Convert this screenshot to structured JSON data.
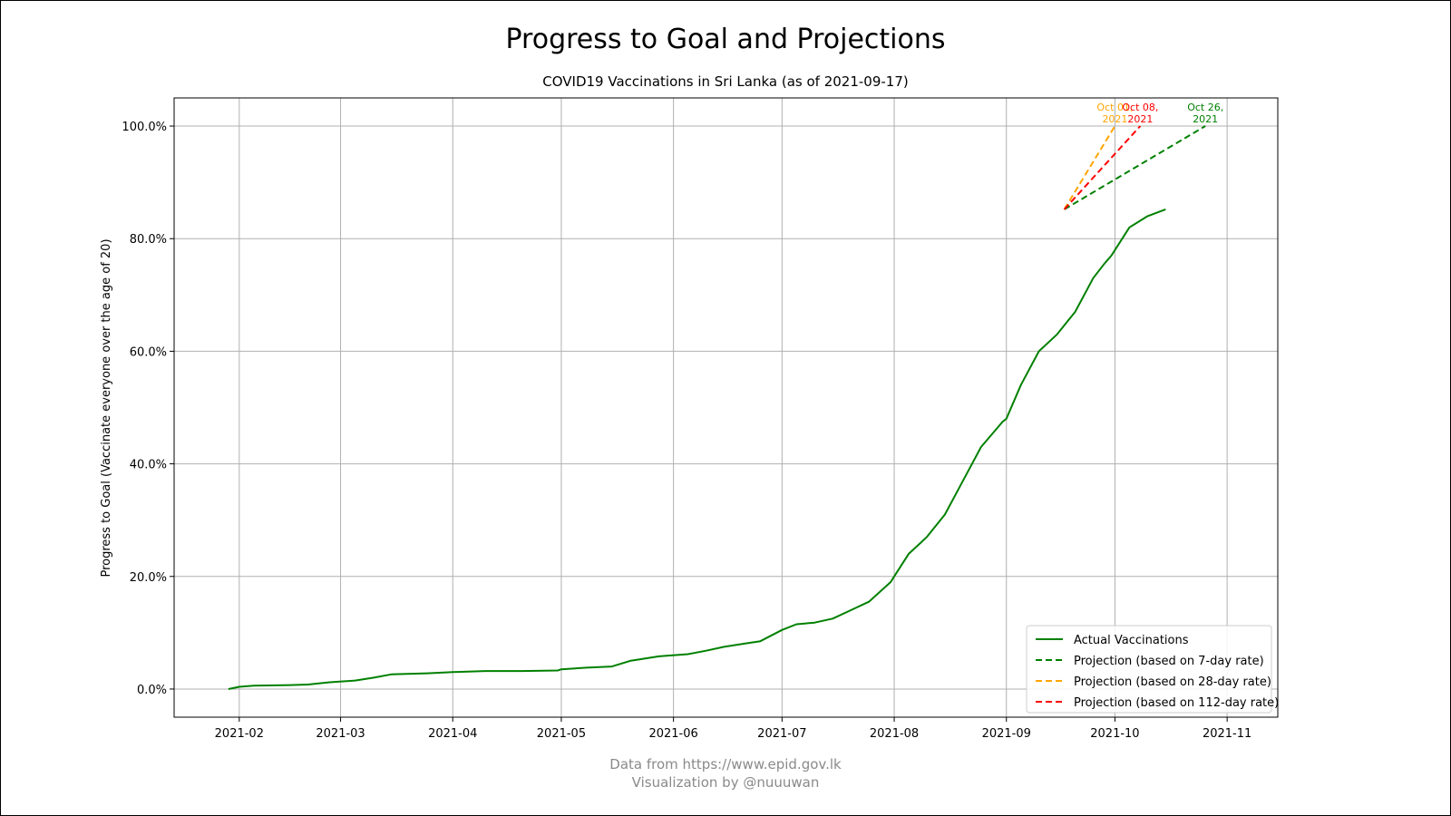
{
  "chart_data": {
    "type": "line",
    "title": "Progress to Goal and Projections",
    "subtitle": "COVID19 Vaccinations in Sri Lanka (as of 2021-09-17)",
    "xlabel": "",
    "ylabel": "Progress to Goal (Vaccinate everyone over the age of 20)",
    "xlim": [
      "2021-01-14",
      "2021-11-15"
    ],
    "ylim": [
      -5,
      105
    ],
    "x_ticks": [
      "2021-02",
      "2021-03",
      "2021-04",
      "2021-05",
      "2021-06",
      "2021-07",
      "2021-08",
      "2021-09",
      "2021-10",
      "2021-11"
    ],
    "x_tick_dates": [
      "2021-02-01",
      "2021-03-01",
      "2021-04-01",
      "2021-05-01",
      "2021-06-01",
      "2021-07-01",
      "2021-08-01",
      "2021-09-01",
      "2021-10-01",
      "2021-11-01"
    ],
    "y_ticks": [
      0,
      20,
      40,
      60,
      80,
      100
    ],
    "y_tick_labels": [
      "0.0%",
      "20.0%",
      "40.0%",
      "60.0%",
      "80.0%",
      "100.0%"
    ],
    "grid": true,
    "legend_position": "bottom-right",
    "series": [
      {
        "name": "Actual Vaccinations",
        "color": "#008000",
        "dash": "solid",
        "points": [
          [
            "2021-01-29",
            0.0
          ],
          [
            "2021-02-01",
            0.4
          ],
          [
            "2021-02-05",
            0.6
          ],
          [
            "2021-02-15",
            0.7
          ],
          [
            "2021-02-20",
            0.8
          ],
          [
            "2021-02-26",
            1.2
          ],
          [
            "2021-03-05",
            1.5
          ],
          [
            "2021-03-10",
            2.0
          ],
          [
            "2021-03-15",
            2.6
          ],
          [
            "2021-03-25",
            2.8
          ],
          [
            "2021-04-01",
            3.0
          ],
          [
            "2021-04-10",
            3.2
          ],
          [
            "2021-04-20",
            3.2
          ],
          [
            "2021-04-30",
            3.3
          ],
          [
            "2021-05-01",
            3.5
          ],
          [
            "2021-05-08",
            3.8
          ],
          [
            "2021-05-15",
            4.0
          ],
          [
            "2021-05-20",
            5.0
          ],
          [
            "2021-05-28",
            5.8
          ],
          [
            "2021-06-05",
            6.2
          ],
          [
            "2021-06-10",
            6.8
          ],
          [
            "2021-06-15",
            7.5
          ],
          [
            "2021-06-20",
            8.0
          ],
          [
            "2021-06-25",
            8.5
          ],
          [
            "2021-07-01",
            10.5
          ],
          [
            "2021-07-05",
            11.5
          ],
          [
            "2021-07-10",
            11.8
          ],
          [
            "2021-07-15",
            12.5
          ],
          [
            "2021-07-20",
            14.0
          ],
          [
            "2021-07-25",
            15.5
          ],
          [
            "2021-07-31",
            19.0
          ],
          [
            "2021-08-01",
            20.0
          ],
          [
            "2021-08-05",
            24.0
          ],
          [
            "2021-08-10",
            27.0
          ],
          [
            "2021-08-15",
            31.0
          ],
          [
            "2021-08-20",
            37.0
          ],
          [
            "2021-08-25",
            43.0
          ],
          [
            "2021-08-31",
            47.5
          ],
          [
            "2021-09-01",
            48.0
          ],
          [
            "2021-09-05",
            54.0
          ],
          [
            "2021-09-10",
            60.0
          ],
          [
            "2021-09-15",
            63.0
          ],
          [
            "2021-09-20",
            67.0
          ],
          [
            "2021-09-25",
            73.0
          ],
          [
            "2021-09-28",
            75.5
          ],
          [
            "2021-09-30",
            77.0
          ],
          [
            "2021-10-05",
            82.0
          ],
          [
            "2021-10-10",
            84.0
          ],
          [
            "2021-10-15",
            85.2
          ]
        ]
      },
      {
        "name": "Projection (based on 7-day rate)",
        "color": "#008000",
        "dash": "dashed",
        "points": [
          [
            "2021-09-17",
            85.2
          ],
          [
            "2021-10-26",
            100.0
          ]
        ]
      },
      {
        "name": "Projection (based on 28-day rate)",
        "color": "#ffa500",
        "dash": "dashed",
        "points": [
          [
            "2021-09-17",
            85.2
          ],
          [
            "2021-10-01",
            100.0
          ]
        ]
      },
      {
        "name": "Projection (based on 112-day rate)",
        "color": "#ff0000",
        "dash": "dashed",
        "points": [
          [
            "2021-09-17",
            85.2
          ],
          [
            "2021-10-08",
            100.0
          ]
        ]
      }
    ],
    "annotations": [
      {
        "lines": [
          "Oct 01,",
          "2021"
        ],
        "color": "#ffa500",
        "date": "2021-10-01",
        "y": 100.0
      },
      {
        "lines": [
          "Oct 08,",
          "2021"
        ],
        "color": "#ff0000",
        "date": "2021-10-08",
        "y": 100.0
      },
      {
        "lines": [
          "Oct 26,",
          "2021"
        ],
        "color": "#008000",
        "date": "2021-10-26",
        "y": 100.0
      }
    ]
  },
  "footer": {
    "line1": "Data from https://www.epid.gov.lk",
    "line2": "Visualization by @nuuuwan"
  }
}
